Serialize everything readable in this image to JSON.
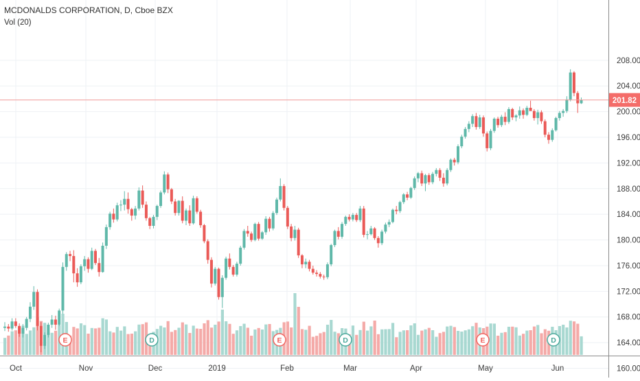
{
  "header": {
    "symbol_line": "MCDONALDS CORPORATION, D, Cboe BZX",
    "volume_label": "Vol (20)"
  },
  "colors": {
    "up": "#5fb8a9",
    "down": "#ea5a57",
    "volume_up": "#a8d8d1",
    "volume_down": "#f4aaa8",
    "grid": "#eef1f4",
    "price_line": "#f19a98",
    "price_tag_bg": "#f46c69",
    "axis_text": "#3a3a3a",
    "marker_earnings": "#f0615c",
    "marker_dividend": "#4aa89b"
  },
  "chart_data": {
    "type": "candlestick",
    "title": "MCDONALDS CORPORATION, D, Cboe BZX",
    "indicator": "Vol (20)",
    "y_axis": {
      "position": "right",
      "range": [
        157.6,
        210.2
      ],
      "ticks": [
        "160.00",
        "164.00",
        "168.00",
        "172.00",
        "176.00",
        "180.00",
        "184.00",
        "188.00",
        "192.00",
        "196.00",
        "200.00",
        "204.00",
        "208.00"
      ]
    },
    "x_axis": {
      "labels": [
        "Oct",
        "Nov",
        "Dec",
        "2019",
        "Feb",
        "Mar",
        "Apr",
        "May",
        "Jun"
      ]
    },
    "last_price": "201.82",
    "grid": true,
    "candles_ohlc": [
      [
        166.3,
        167.2,
        165.8,
        166.5
      ],
      [
        166.5,
        166.9,
        165.7,
        166.2
      ],
      [
        166.2,
        167.8,
        165.9,
        167.3
      ],
      [
        167.3,
        167.8,
        166.3,
        166.6
      ],
      [
        166.6,
        167.0,
        164.9,
        165.4
      ],
      [
        165.4,
        166.9,
        164.8,
        166.3
      ],
      [
        166.3,
        168.0,
        165.9,
        167.7
      ],
      [
        167.7,
        170.3,
        167.2,
        169.6
      ],
      [
        169.6,
        172.8,
        169.1,
        171.9
      ],
      [
        171.9,
        172.3,
        165.9,
        166.6
      ],
      [
        166.6,
        167.2,
        162.5,
        163.5
      ],
      [
        163.5,
        165.6,
        163.0,
        165.2
      ],
      [
        165.2,
        167.1,
        164.8,
        166.8
      ],
      [
        166.8,
        168.3,
        166.3,
        167.6
      ],
      [
        167.6,
        168.2,
        166.0,
        166.8
      ],
      [
        166.8,
        169.3,
        166.6,
        169.0
      ],
      [
        169.0,
        176.5,
        168.5,
        175.8
      ],
      [
        175.8,
        178.1,
        175.2,
        177.8
      ],
      [
        177.8,
        178.3,
        176.7,
        177.5
      ],
      [
        177.5,
        178.4,
        173.4,
        174.8
      ],
      [
        174.8,
        175.6,
        172.7,
        173.4
      ],
      [
        173.4,
        176.2,
        173.1,
        175.9
      ],
      [
        175.9,
        177.5,
        175.2,
        177.0
      ],
      [
        177.0,
        177.3,
        174.9,
        175.5
      ],
      [
        175.5,
        178.8,
        175.3,
        178.3
      ],
      [
        178.3,
        178.6,
        176.1,
        176.4
      ],
      [
        176.4,
        177.2,
        174.3,
        175.0
      ],
      [
        175.0,
        179.6,
        174.9,
        179.1
      ],
      [
        179.1,
        182.4,
        178.6,
        182.0
      ],
      [
        182.0,
        184.4,
        181.6,
        184.1
      ],
      [
        184.1,
        184.9,
        182.7,
        183.2
      ],
      [
        183.2,
        185.8,
        182.9,
        185.4
      ],
      [
        185.4,
        186.2,
        184.5,
        185.5
      ],
      [
        185.5,
        187.6,
        184.6,
        186.4
      ],
      [
        186.4,
        187.4,
        184.1,
        184.8
      ],
      [
        184.8,
        185.0,
        183.0,
        183.8
      ],
      [
        183.8,
        185.3,
        183.2,
        184.9
      ],
      [
        184.9,
        188.2,
        184.6,
        187.7
      ],
      [
        187.7,
        188.5,
        185.0,
        185.5
      ],
      [
        185.5,
        186.0,
        183.0,
        183.4
      ],
      [
        183.4,
        183.6,
        181.7,
        182.2
      ],
      [
        182.2,
        183.9,
        181.8,
        183.6
      ],
      [
        183.6,
        185.5,
        183.1,
        185.3
      ],
      [
        185.3,
        187.7,
        185.0,
        187.4
      ],
      [
        187.4,
        190.7,
        187.1,
        190.2
      ],
      [
        190.2,
        190.5,
        187.3,
        187.9
      ],
      [
        187.9,
        188.1,
        185.6,
        186.0
      ],
      [
        186.0,
        186.4,
        183.8,
        184.2
      ],
      [
        184.2,
        186.2,
        183.8,
        186.1
      ],
      [
        186.1,
        186.8,
        182.6,
        183.0
      ],
      [
        183.0,
        184.9,
        182.3,
        184.6
      ],
      [
        184.6,
        185.4,
        182.2,
        182.6
      ],
      [
        182.6,
        186.9,
        182.4,
        186.5
      ],
      [
        186.5,
        186.8,
        184.1,
        184.4
      ],
      [
        184.4,
        184.7,
        181.9,
        182.3
      ],
      [
        182.3,
        182.5,
        179.5,
        179.8
      ],
      [
        179.8,
        180.1,
        176.3,
        176.9
      ],
      [
        176.9,
        177.3,
        172.6,
        173.2
      ],
      [
        173.2,
        175.8,
        172.9,
        175.5
      ],
      [
        175.5,
        175.7,
        170.7,
        171.1
      ],
      [
        171.1,
        174.5,
        169.4,
        174.1
      ],
      [
        174.1,
        177.4,
        173.8,
        177.1
      ],
      [
        177.1,
        177.9,
        175.4,
        175.8
      ],
      [
        175.8,
        176.1,
        174.3,
        174.6
      ],
      [
        174.6,
        176.6,
        174.3,
        176.3
      ],
      [
        176.3,
        179.1,
        176.0,
        178.8
      ],
      [
        178.8,
        181.7,
        178.5,
        181.4
      ],
      [
        181.4,
        182.2,
        180.5,
        181.0
      ],
      [
        181.0,
        181.3,
        179.7,
        180.0
      ],
      [
        180.0,
        182.7,
        179.8,
        182.5
      ],
      [
        182.5,
        182.8,
        179.9,
        180.2
      ],
      [
        180.2,
        181.4,
        180.0,
        181.2
      ],
      [
        181.2,
        183.7,
        180.8,
        183.3
      ],
      [
        183.3,
        183.6,
        181.3,
        181.8
      ],
      [
        181.8,
        184.5,
        181.5,
        184.2
      ],
      [
        184.2,
        186.6,
        183.9,
        186.3
      ],
      [
        186.3,
        189.6,
        186.0,
        188.4
      ],
      [
        188.4,
        188.7,
        184.6,
        185.0
      ],
      [
        185.0,
        185.3,
        181.7,
        182.1
      ],
      [
        182.1,
        182.5,
        179.8,
        180.3
      ],
      [
        180.3,
        182.2,
        179.9,
        181.6
      ],
      [
        181.6,
        181.9,
        177.2,
        177.6
      ],
      [
        177.6,
        177.8,
        175.6,
        176.2
      ],
      [
        176.2,
        177.1,
        175.6,
        176.6
      ],
      [
        176.6,
        176.9,
        175.1,
        175.5
      ],
      [
        175.5,
        176.0,
        174.6,
        174.9
      ],
      [
        174.9,
        175.3,
        174.3,
        174.7
      ],
      [
        174.7,
        175.0,
        174.0,
        174.3
      ],
      [
        174.3,
        174.6,
        173.8,
        174.2
      ],
      [
        174.2,
        176.5,
        173.9,
        176.2
      ],
      [
        176.2,
        179.4,
        175.9,
        179.2
      ],
      [
        179.2,
        181.6,
        178.9,
        181.4
      ],
      [
        181.4,
        182.0,
        180.1,
        180.5
      ],
      [
        180.5,
        182.8,
        180.2,
        182.5
      ],
      [
        182.5,
        183.8,
        182.2,
        183.6
      ],
      [
        183.6,
        184.0,
        182.9,
        183.2
      ],
      [
        183.2,
        184.2,
        182.9,
        183.9
      ],
      [
        183.9,
        184.2,
        182.8,
        183.1
      ],
      [
        183.1,
        185.3,
        182.8,
        184.9
      ],
      [
        184.9,
        185.3,
        180.4,
        180.8
      ],
      [
        180.8,
        181.4,
        180.1,
        180.9
      ],
      [
        180.9,
        182.2,
        180.7,
        181.8
      ],
      [
        181.8,
        182.0,
        180.0,
        180.3
      ],
      [
        180.3,
        180.6,
        178.8,
        179.5
      ],
      [
        179.5,
        181.6,
        179.2,
        181.3
      ],
      [
        181.3,
        182.7,
        181.0,
        182.4
      ],
      [
        182.4,
        183.2,
        182.0,
        182.8
      ],
      [
        182.8,
        184.9,
        182.6,
        184.7
      ],
      [
        184.7,
        185.3,
        184.0,
        184.5
      ],
      [
        184.5,
        186.1,
        184.2,
        185.9
      ],
      [
        185.9,
        187.3,
        185.6,
        187.1
      ],
      [
        187.1,
        187.5,
        186.2,
        186.6
      ],
      [
        186.6,
        188.3,
        186.4,
        188.1
      ],
      [
        188.1,
        189.9,
        187.8,
        189.6
      ],
      [
        189.6,
        190.6,
        189.0,
        190.4
      ],
      [
        190.4,
        190.8,
        188.4,
        188.8
      ],
      [
        188.8,
        190.3,
        187.6,
        190.1
      ],
      [
        190.1,
        190.4,
        188.6,
        189.0
      ],
      [
        189.0,
        190.6,
        188.7,
        190.3
      ],
      [
        190.3,
        191.2,
        189.9,
        190.9
      ],
      [
        190.9,
        191.2,
        189.2,
        189.7
      ],
      [
        189.7,
        190.4,
        188.3,
        188.8
      ],
      [
        188.8,
        191.2,
        188.5,
        190.9
      ],
      [
        190.9,
        192.7,
        190.6,
        192.5
      ],
      [
        192.5,
        192.8,
        191.6,
        192.1
      ],
      [
        192.1,
        194.9,
        191.8,
        194.6
      ],
      [
        194.6,
        196.4,
        194.3,
        196.1
      ],
      [
        196.1,
        197.6,
        195.8,
        197.3
      ],
      [
        197.3,
        198.5,
        196.8,
        198.1
      ],
      [
        198.1,
        199.6,
        197.6,
        199.3
      ],
      [
        199.3,
        199.8,
        197.2,
        197.6
      ],
      [
        197.6,
        199.5,
        197.3,
        199.1
      ],
      [
        199.1,
        199.4,
        196.1,
        196.6
      ],
      [
        196.6,
        196.9,
        193.8,
        194.3
      ],
      [
        194.3,
        197.3,
        194.0,
        197.0
      ],
      [
        197.0,
        199.1,
        196.7,
        198.9
      ],
      [
        198.9,
        199.2,
        197.5,
        197.9
      ],
      [
        197.9,
        199.5,
        197.6,
        199.2
      ],
      [
        199.2,
        199.9,
        197.9,
        198.4
      ],
      [
        198.4,
        200.7,
        198.1,
        200.4
      ],
      [
        200.4,
        200.6,
        198.7,
        199.1
      ],
      [
        199.1,
        199.6,
        198.5,
        199.4
      ],
      [
        199.4,
        200.8,
        198.9,
        200.2
      ],
      [
        200.2,
        200.5,
        198.9,
        199.5
      ],
      [
        199.5,
        200.9,
        199.3,
        200.6
      ],
      [
        200.6,
        201.7,
        200.3,
        200.1
      ],
      [
        200.1,
        200.4,
        198.6,
        199.0
      ],
      [
        199.0,
        200.3,
        198.0,
        199.9
      ],
      [
        199.9,
        200.2,
        198.1,
        198.5
      ],
      [
        198.5,
        198.8,
        196.0,
        196.4
      ],
      [
        196.4,
        196.8,
        195.0,
        195.6
      ],
      [
        195.6,
        197.4,
        195.3,
        197.1
      ],
      [
        197.1,
        199.2,
        196.9,
        199.0
      ],
      [
        199.0,
        200.1,
        198.6,
        199.8
      ],
      [
        199.8,
        200.4,
        199.2,
        200.1
      ],
      [
        200.1,
        202.4,
        199.8,
        201.9
      ],
      [
        201.9,
        206.6,
        201.6,
        206.1
      ],
      [
        206.1,
        206.3,
        202.4,
        202.9
      ],
      [
        202.9,
        203.2,
        199.8,
        201.3
      ],
      [
        201.3,
        202.2,
        201.2,
        201.82
      ]
    ],
    "volume_note": "volume bars colored by candle direction",
    "event_markers": [
      {
        "letter": "E",
        "type": "earnings"
      },
      {
        "letter": "D",
        "type": "dividend"
      },
      {
        "letter": "E",
        "type": "earnings"
      },
      {
        "letter": "D",
        "type": "dividend"
      },
      {
        "letter": "E",
        "type": "earnings"
      },
      {
        "letter": "D",
        "type": "dividend"
      }
    ]
  }
}
